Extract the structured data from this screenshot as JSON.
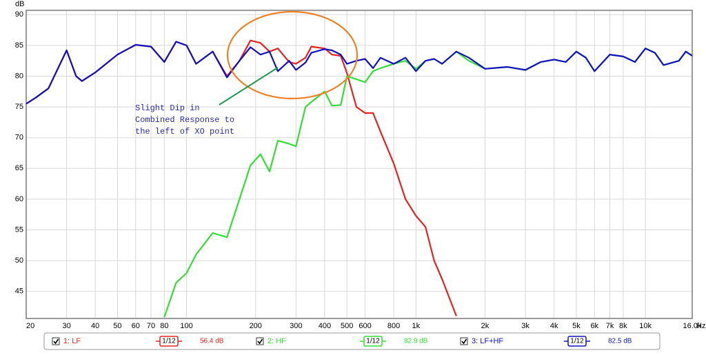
{
  "chart_data": {
    "type": "line",
    "y_unit": "dB",
    "x_unit": "Hz",
    "log_x": true,
    "grid": true,
    "xlim": [
      20,
      16000
    ],
    "ylim": [
      40.6,
      90.7
    ],
    "yticks": [
      45,
      50,
      55,
      60,
      65,
      70,
      75,
      80,
      85,
      90
    ],
    "xticks": [
      20,
      30,
      40,
      50,
      60,
      70,
      80,
      100,
      200,
      300,
      400,
      500,
      600,
      800,
      {
        "value": 1000,
        "label": "1k"
      },
      {
        "value": 2000,
        "label": "2k"
      },
      {
        "value": 3000,
        "label": "3k"
      },
      {
        "value": 4000,
        "label": "4k"
      },
      {
        "value": 5000,
        "label": "5k"
      },
      {
        "value": 6000,
        "label": "6k"
      },
      {
        "value": 7000,
        "label": "7k"
      },
      {
        "value": 8000,
        "label": "8k"
      },
      {
        "value": 10000,
        "label": "10k"
      },
      {
        "value": 16000,
        "label": "16.0k"
      }
    ],
    "annotation": [
      "Slight Dip in",
      "Combined Response to",
      "the left of XO point"
    ],
    "x": [
      20,
      22,
      25,
      30,
      33,
      35,
      40,
      50,
      60,
      70,
      80,
      90,
      100,
      110,
      130,
      150,
      170,
      190,
      210,
      230,
      250,
      280,
      300,
      330,
      350,
      400,
      430,
      470,
      500,
      550,
      600,
      650,
      700,
      800,
      900,
      1000,
      1100,
      1200,
      1300,
      1500,
      1700,
      2000,
      2500,
      3000,
      3500,
      4000,
      4500,
      5000,
      5500,
      6000,
      7000,
      8000,
      9000,
      10000,
      11000,
      12000,
      14000,
      15000,
      16000
    ],
    "series": [
      {
        "name": "1: LF",
        "color": "#e82020",
        "smoothing": "1/12",
        "level": "56.4 dB",
        "values": [
          75.5,
          76.5,
          78,
          84.2,
          80,
          79.2,
          80.6,
          83.5,
          85.1,
          84.8,
          82.3,
          85.6,
          85,
          82,
          84,
          80,
          82.5,
          85.8,
          85.4,
          84,
          84.5,
          82.3,
          82,
          83,
          84.8,
          84.5,
          83.5,
          83.3,
          80.5,
          75,
          74,
          74,
          71,
          65.8,
          60,
          57.3,
          55.5,
          50,
          47,
          41,
          null,
          null,
          null,
          null,
          null,
          null,
          null,
          null,
          null,
          null,
          null,
          null,
          null,
          null,
          null,
          null,
          null,
          null,
          null
        ]
      },
      {
        "name": "2: HF",
        "color": "#30e030",
        "smoothing": "1/12",
        "level": "82.9 dB",
        "values": [
          null,
          null,
          null,
          null,
          null,
          null,
          null,
          null,
          null,
          null,
          40.8,
          46.4,
          48,
          51,
          54.5,
          53.8,
          60,
          65.5,
          67.3,
          64.5,
          69.5,
          69,
          68.6,
          75,
          75.8,
          77.5,
          75.2,
          75.3,
          80,
          79.5,
          79,
          80.8,
          81.3,
          82,
          82.5,
          81.2,
          82.5,
          82.8,
          82,
          84,
          82.5,
          81.2,
          81.5,
          81,
          82.3,
          82.7,
          82.3,
          84,
          83,
          80.8,
          83.5,
          83.2,
          82.3,
          84.5,
          83.8,
          81.8,
          82.5,
          84,
          83.3
        ]
      },
      {
        "name": "3: LF+HF",
        "color": "#1010c0",
        "smoothing": "1/12",
        "level": "82.5 dB",
        "values": [
          75.5,
          76.5,
          78,
          84.2,
          80,
          79.2,
          80.6,
          83.5,
          85.1,
          84.8,
          82.3,
          85.6,
          85,
          82,
          84,
          79.8,
          82.5,
          84.7,
          83.5,
          84,
          80.8,
          82.5,
          81,
          82.2,
          83.8,
          84.4,
          84.2,
          83.5,
          82,
          82.5,
          82.8,
          81.3,
          83,
          82,
          83,
          80.8,
          82.5,
          82.8,
          82,
          84,
          83,
          81.2,
          81.5,
          81,
          82.3,
          82.7,
          82.3,
          84,
          83,
          80.8,
          83.5,
          83.2,
          82.3,
          84.5,
          83.8,
          81.8,
          82.5,
          84,
          83.3
        ]
      }
    ]
  }
}
